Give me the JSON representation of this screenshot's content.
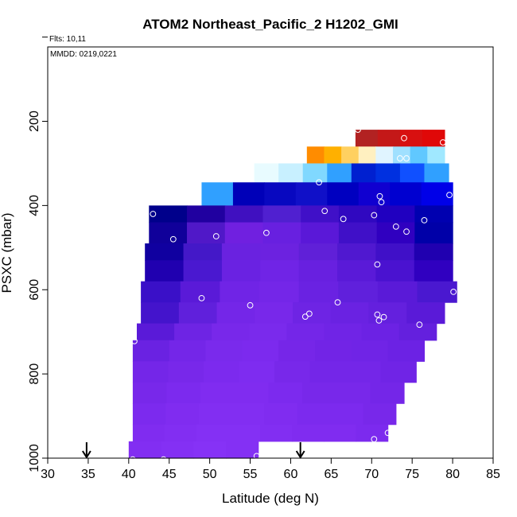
{
  "chart_data": {
    "type": "heatmap",
    "title": "ATOM2 Northeast_Pacific_2 H1202_GMI",
    "flights_note": "Flts: 10,11",
    "date_note": "MMDD: 0219,0221",
    "xlabel": "Latitude (deg N)",
    "ylabel": "PSXC (mbar)",
    "xlim": [
      30,
      85
    ],
    "ylim": [
      1000,
      0
    ],
    "y_inverted": true,
    "x_ticks": [
      30,
      35,
      40,
      45,
      50,
      55,
      60,
      65,
      70,
      75,
      80,
      85
    ],
    "y_ticks": [
      200,
      400,
      600,
      800,
      1000
    ],
    "grid": false,
    "legend": "none",
    "arrows_at_latitude": [
      34.8,
      61.2
    ],
    "layers": [
      {
        "p_top": 220,
        "p_bottom": 260,
        "lat_min": 68,
        "lat_max": 79,
        "colors": [
          "#b22222",
          "#c41818",
          "#d81010",
          "#e00808"
        ]
      },
      {
        "p_top": 260,
        "p_bottom": 300,
        "lat_min": 62,
        "lat_max": 79,
        "colors": [
          "#ff8c00",
          "#ffb000",
          "#ffd060",
          "#fff0c0",
          "#e0f4ff",
          "#a0e0ff",
          "#60c8ff",
          "#a0e8ff"
        ]
      },
      {
        "p_top": 300,
        "p_bottom": 345,
        "lat_min": 55.5,
        "lat_max": 79.5,
        "colors": [
          "#e8fbff",
          "#c8f0ff",
          "#80d8ff",
          "#30a0ff",
          "#0020d0",
          "#0030e0",
          "#1050ff",
          "#30a0ff"
        ]
      },
      {
        "p_top": 345,
        "p_bottom": 400,
        "lat_min": 49,
        "lat_max": 80,
        "colors": [
          "#30a0ff",
          "#0000b8",
          "#0808c0",
          "#1010c8",
          "#0000c0",
          "#1000d0",
          "#0000d0",
          "#0000e8"
        ]
      },
      {
        "p_top": 400,
        "p_bottom": 440,
        "lat_min": 42.5,
        "lat_max": 80,
        "colors": [
          "#00008b",
          "#2000a0",
          "#4010c0",
          "#5020d0",
          "#4010c8",
          "#3008c0",
          "#2000c0",
          "#0000b0"
        ]
      },
      {
        "p_top": 440,
        "p_bottom": 490,
        "lat_min": 42.5,
        "lat_max": 80,
        "colors": [
          "#10009a",
          "#5018c8",
          "#7020e0",
          "#6820e0",
          "#5a18d8",
          "#4010c8",
          "#3000c0",
          "#0000a8"
        ]
      },
      {
        "p_top": 490,
        "p_bottom": 530,
        "lat_min": 42,
        "lat_max": 80,
        "colors": [
          "#1000a0",
          "#4418c8",
          "#6a22e0",
          "#6c22e0",
          "#6020d8",
          "#5018d0",
          "#4010c8",
          "#2000b0"
        ]
      },
      {
        "p_top": 530,
        "p_bottom": 580,
        "lat_min": 42,
        "lat_max": 80,
        "colors": [
          "#2000b0",
          "#4a18d0",
          "#6a22e2",
          "#7024e6",
          "#6820e0",
          "#5a1ad8",
          "#4a12d0",
          "#3000c0"
        ]
      },
      {
        "p_top": 580,
        "p_bottom": 630,
        "lat_min": 41.5,
        "lat_max": 80.5,
        "colors": [
          "#3a10c8",
          "#5a1ad8",
          "#7024e6",
          "#7426e8",
          "#6a22e2",
          "#6020dc",
          "#5a1ad8",
          "#4a18d0"
        ]
      },
      {
        "p_top": 630,
        "p_bottom": 680,
        "lat_min": 41.5,
        "lat_max": 79,
        "colors": [
          "#4414cc",
          "#6020dc",
          "#7426e8",
          "#7828ea",
          "#6e24e4",
          "#6a22e2",
          "#6420de",
          "#5a1ad8"
        ]
      },
      {
        "p_top": 680,
        "p_bottom": 720,
        "lat_min": 41,
        "lat_max": 78,
        "colors": [
          "#5a1ad8",
          "#6e24e4",
          "#7828ea",
          "#7a2aec",
          "#7426e8",
          "#7024e6",
          "#6c22e4",
          "#6420de"
        ]
      },
      {
        "p_top": 720,
        "p_bottom": 770,
        "lat_min": 40.5,
        "lat_max": 76.5,
        "colors": [
          "#6a22e2",
          "#7426e8",
          "#7a2aec",
          "#7c2aee",
          "#7626e8",
          "#7224e6",
          "#7024e6",
          "#6c22e4"
        ]
      },
      {
        "p_top": 770,
        "p_bottom": 820,
        "lat_min": 40.5,
        "lat_max": 75.5,
        "colors": [
          "#7426e8",
          "#7828ea",
          "#7c2aee",
          "#7e2cf0",
          "#7828ea",
          "#7426e8",
          "#7426e8",
          "#7024e6"
        ]
      },
      {
        "p_top": 820,
        "p_bottom": 870,
        "lat_min": 40.5,
        "lat_max": 74,
        "colors": [
          "#7828ea",
          "#7c2aee",
          "#802cf0",
          "#802cf0",
          "#7c2aee",
          "#7828ea",
          "#7828ea",
          "#7426e8"
        ]
      },
      {
        "p_top": 870,
        "p_bottom": 920,
        "lat_min": 40.5,
        "lat_max": 73,
        "colors": [
          "#7c2aee",
          "#802cf0",
          "#822ef2",
          "#822ef2",
          "#802cf0",
          "#7c2aee",
          "#7c2aee",
          "#7828ea"
        ]
      },
      {
        "p_top": 920,
        "p_bottom": 960,
        "lat_min": 40.5,
        "lat_max": 72,
        "colors": [
          "#802cf0",
          "#822ef2",
          "#8430f4",
          "#8430f4",
          "#822ef2",
          "#802cf0",
          "#802cf0",
          "#7c2aee"
        ]
      },
      {
        "p_top": 960,
        "p_bottom": 1000,
        "lat_min": 40,
        "lat_max": 56,
        "colors": [
          "#822ef2",
          "#8430f4",
          "#8632f6",
          "#8430f4"
        ]
      }
    ],
    "points": [
      {
        "lat": 68.3,
        "p": 220
      },
      {
        "lat": 74.0,
        "p": 240
      },
      {
        "lat": 78.8,
        "p": 250
      },
      {
        "lat": 73.5,
        "p": 288
      },
      {
        "lat": 74.3,
        "p": 288
      },
      {
        "lat": 63.5,
        "p": 345
      },
      {
        "lat": 71.0,
        "p": 378
      },
      {
        "lat": 79.6,
        "p": 375
      },
      {
        "lat": 71.2,
        "p": 392
      },
      {
        "lat": 43.0,
        "p": 420
      },
      {
        "lat": 64.2,
        "p": 413
      },
      {
        "lat": 70.3,
        "p": 423
      },
      {
        "lat": 66.5,
        "p": 432
      },
      {
        "lat": 76.5,
        "p": 435
      },
      {
        "lat": 73.0,
        "p": 450
      },
      {
        "lat": 74.3,
        "p": 462
      },
      {
        "lat": 57.0,
        "p": 465
      },
      {
        "lat": 50.8,
        "p": 473
      },
      {
        "lat": 45.5,
        "p": 480
      },
      {
        "lat": 70.7,
        "p": 540
      },
      {
        "lat": 80.1,
        "p": 605
      },
      {
        "lat": 49.0,
        "p": 620
      },
      {
        "lat": 65.8,
        "p": 630
      },
      {
        "lat": 55.0,
        "p": 637
      },
      {
        "lat": 62.3,
        "p": 657
      },
      {
        "lat": 61.8,
        "p": 664
      },
      {
        "lat": 70.7,
        "p": 659
      },
      {
        "lat": 71.5,
        "p": 665
      },
      {
        "lat": 70.9,
        "p": 673
      },
      {
        "lat": 75.9,
        "p": 683
      },
      {
        "lat": 40.7,
        "p": 722
      },
      {
        "lat": 72.0,
        "p": 940
      },
      {
        "lat": 70.3,
        "p": 955
      },
      {
        "lat": 55.8,
        "p": 995
      },
      {
        "lat": 44.3,
        "p": 1003
      },
      {
        "lat": 40.5,
        "p": 1003
      }
    ]
  }
}
